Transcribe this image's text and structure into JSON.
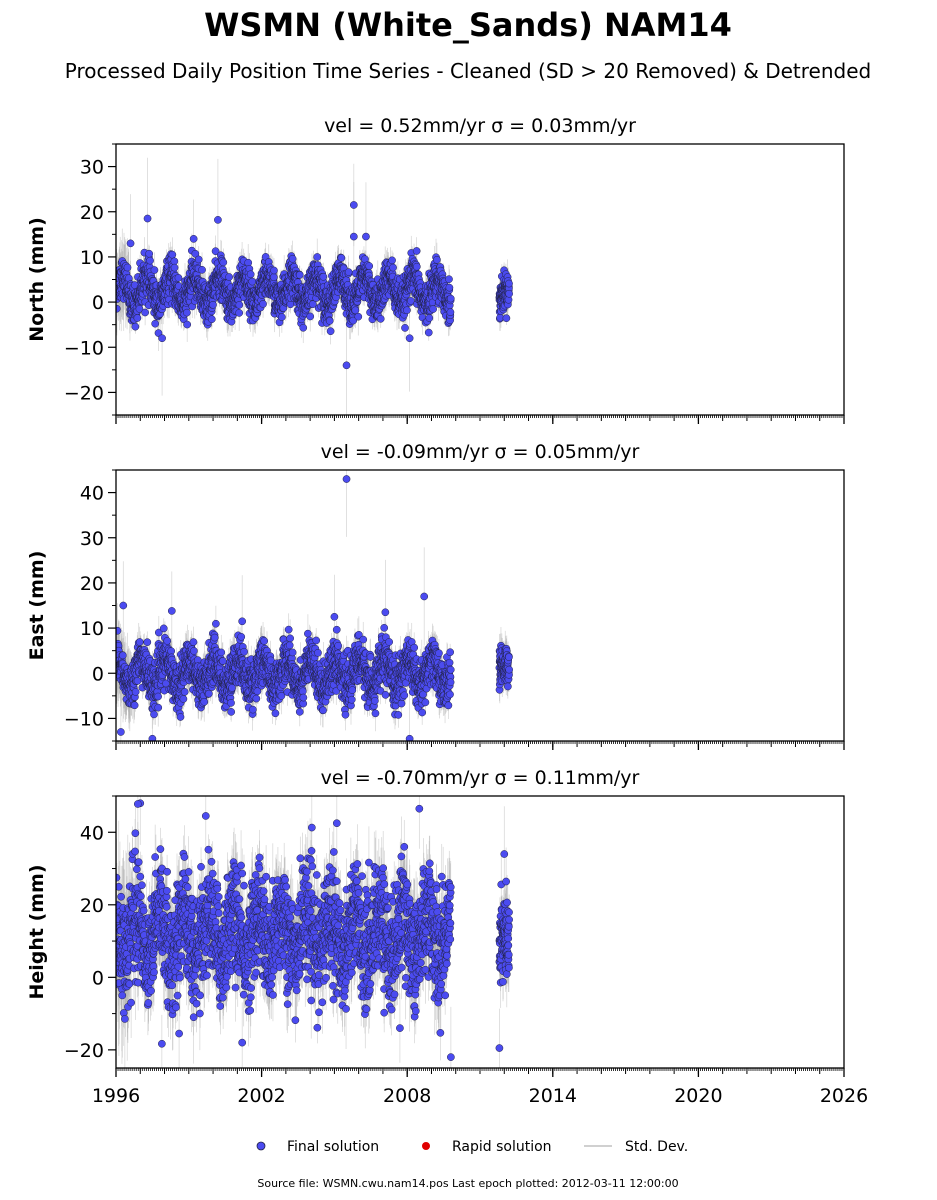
{
  "figure": {
    "title": "WSMN (White_Sands) NAM14",
    "subtitle": "Processed Daily Position Time Series - Cleaned (SD > 20 Removed) & Detrended",
    "source_note": "Source file: WSMN.cwu.nam14.pos  Last epoch plotted: 2012-03-11 12:00:00"
  },
  "colors": {
    "final": "#4b4bf0",
    "final_edge": "#222244",
    "rapid": "#e00000",
    "stddev": "#b0b0b0"
  },
  "legend": {
    "final": "Final solution",
    "rapid": "Rapid solution",
    "stddev": "Std. Dev."
  },
  "chart_data": [
    {
      "type": "scatter",
      "component": "north",
      "title": "vel = 0.52mm/yr   σ = 0.03mm/yr",
      "ylabel": "North (mm)",
      "xlim": [
        1996,
        2026
      ],
      "ylim": [
        -25,
        35
      ],
      "yticks": [
        -20,
        -10,
        0,
        10,
        20,
        30
      ],
      "xticks": [
        "1996",
        "2002",
        "2008",
        "2014",
        "2020",
        "2026"
      ],
      "segments": [
        {
          "x_start": 1996.0,
          "x_end": 2009.8,
          "mean": 2.5,
          "amp": 3.0,
          "noise": 2.2,
          "err": 3.0
        },
        {
          "x_start": 2011.8,
          "x_end": 2012.2,
          "mean": 2.0,
          "amp": 1.0,
          "noise": 1.8,
          "err": 3.0
        }
      ],
      "outliers": [
        [
          1997.3,
          18.5
        ],
        [
          2000.2,
          18.2
        ],
        [
          2005.8,
          21.5
        ],
        [
          2005.5,
          -14.0
        ],
        [
          1999.2,
          14.0
        ],
        [
          2006.3,
          14.5
        ],
        [
          2008.1,
          -8.0
        ],
        [
          1996.6,
          13.0
        ],
        [
          1997.9,
          -8.0
        ],
        [
          2005.8,
          14.5
        ]
      ]
    },
    {
      "type": "scatter",
      "component": "east",
      "title": "vel = -0.09mm/yr   σ = 0.05mm/yr",
      "ylabel": "East (mm)",
      "xlim": [
        1996,
        2026
      ],
      "ylim": [
        -15,
        45
      ],
      "yticks": [
        -10,
        0,
        10,
        20,
        30,
        40
      ],
      "xticks": [
        "1996",
        "2002",
        "2008",
        "2014",
        "2020",
        "2026"
      ],
      "segments": [
        {
          "x_start": 1996.0,
          "x_end": 2009.8,
          "mean": 0.0,
          "amp": 3.0,
          "noise": 2.5,
          "err": 3.2
        },
        {
          "x_start": 2011.8,
          "x_end": 2012.2,
          "mean": 0.5,
          "amp": 1.5,
          "noise": 2.0,
          "err": 3.0
        }
      ],
      "outliers": [
        [
          2005.5,
          43.0
        ],
        [
          2008.7,
          17.0
        ],
        [
          1996.3,
          15.0
        ],
        [
          2005.0,
          12.5
        ],
        [
          2007.1,
          13.5
        ],
        [
          1996.2,
          -13.0
        ],
        [
          2008.1,
          -14.5
        ],
        [
          1997.5,
          -14.5
        ],
        [
          1998.3,
          13.8
        ],
        [
          2001.2,
          11.5
        ]
      ]
    },
    {
      "type": "scatter",
      "component": "height",
      "title": "vel = -0.70mm/yr   σ = 0.11mm/yr",
      "ylabel": "Height (mm)",
      "xlim": [
        1996,
        2026
      ],
      "ylim": [
        -25,
        50
      ],
      "yticks": [
        -20,
        0,
        20,
        40
      ],
      "xticks": [
        "1996",
        "2002",
        "2008",
        "2014",
        "2020",
        "2026"
      ],
      "segments": [
        {
          "x_start": 1996.0,
          "x_end": 2009.8,
          "mean": 12.0,
          "amp": 6.0,
          "noise": 7.5,
          "err": 8.0
        },
        {
          "x_start": 2011.8,
          "x_end": 2012.2,
          "mean": 10.0,
          "amp": 2.0,
          "noise": 6.0,
          "err": 7.0
        }
      ],
      "outliers": [
        [
          1997.0,
          48.0
        ],
        [
          1996.9,
          47.8
        ],
        [
          2005.1,
          42.5
        ],
        [
          2008.5,
          46.5
        ],
        [
          1999.7,
          44.5
        ],
        [
          2009.8,
          -22.0
        ],
        [
          2011.8,
          -19.5
        ],
        [
          2001.2,
          -18.0
        ],
        [
          1999.2,
          -11.0
        ],
        [
          2007.7,
          -14.0
        ],
        [
          2012.0,
          34.0
        ],
        [
          1998.6,
          -15.5
        ]
      ]
    }
  ]
}
